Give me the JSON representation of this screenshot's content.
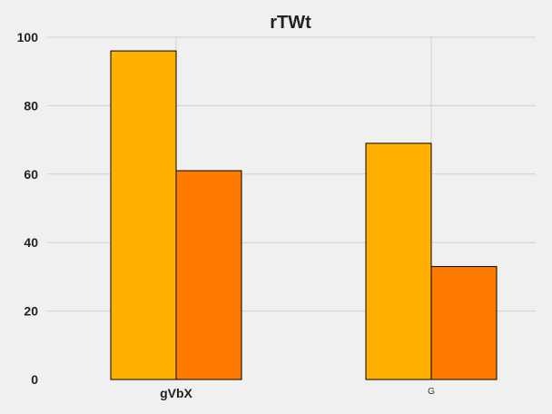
{
  "chart_data": {
    "type": "bar",
    "title": "rTWt",
    "xlabel": "",
    "ylabel": "",
    "categories": [
      "gVbX",
      "G"
    ],
    "series": [
      {
        "values": [
          96,
          69
        ],
        "color": "#ffb000"
      },
      {
        "values": [
          61,
          33
        ],
        "color": "#ff7b00"
      }
    ],
    "ylim": [
      0,
      100
    ],
    "yticks": [
      "0",
      "20",
      "40",
      "60",
      "80",
      "100"
    ],
    "grid": true,
    "legend": "none"
  },
  "colors": {
    "background": "#f0f0f0",
    "grid": "#cfcfcf"
  }
}
